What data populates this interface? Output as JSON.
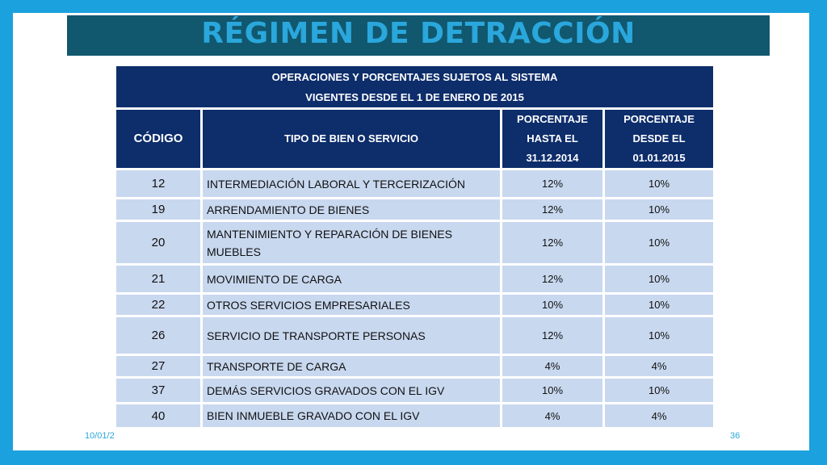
{
  "title": "RÉGIMEN DE DETRACCIÓN",
  "footer": {
    "date": "10/01/2",
    "page": "36"
  },
  "table": {
    "header_line1": "OPERACIONES Y PORCENTAJES SUJETOS AL SISTEMA",
    "header_line2": "VIGENTES DESDE EL 1 DE ENERO DE 2015",
    "columns": {
      "code": "CÓDIGO",
      "type": "TIPO DE BIEN O SERVICIO",
      "pct_until": [
        "PORCENTAJE",
        "HASTA EL",
        "31.12.2014"
      ],
      "pct_from": [
        "PORCENTAJE",
        "DESDE EL",
        "01.01.2015"
      ]
    },
    "rows": [
      {
        "code": "12",
        "desc": "INTERMEDIACIÓN LABORAL Y TERCERIZACIÓN",
        "until": "12%",
        "from": "10%"
      },
      {
        "code": "19",
        "desc": "ARRENDAMIENTO DE BIENES",
        "until": "12%",
        "from": "10%"
      },
      {
        "code": "20",
        "desc": "MANTENIMIENTO Y REPARACIÓN DE BIENES MUEBLES",
        "until": "12%",
        "from": "10%"
      },
      {
        "code": "21",
        "desc": "MOVIMIENTO DE CARGA",
        "until": "12%",
        "from": "10%"
      },
      {
        "code": "22",
        "desc": "OTROS SERVICIOS EMPRESARIALES",
        "until": "10%",
        "from": "10%"
      },
      {
        "code": "26",
        "desc": "SERVICIO DE TRANSPORTE PERSONAS",
        "until": "12%",
        "from": "10%"
      },
      {
        "code": "27",
        "desc": "TRANSPORTE DE CARGA",
        "until": "4%",
        "from": "4%"
      },
      {
        "code": "37",
        "desc": "DEMÁS SERVICIOS GRAVADOS CON EL IGV",
        "until": "10%",
        "from": "10%"
      },
      {
        "code": "40",
        "desc": "BIEN INMUEBLE GRAVADO CON EL IGV",
        "until": "4%",
        "from": "4%"
      }
    ]
  }
}
